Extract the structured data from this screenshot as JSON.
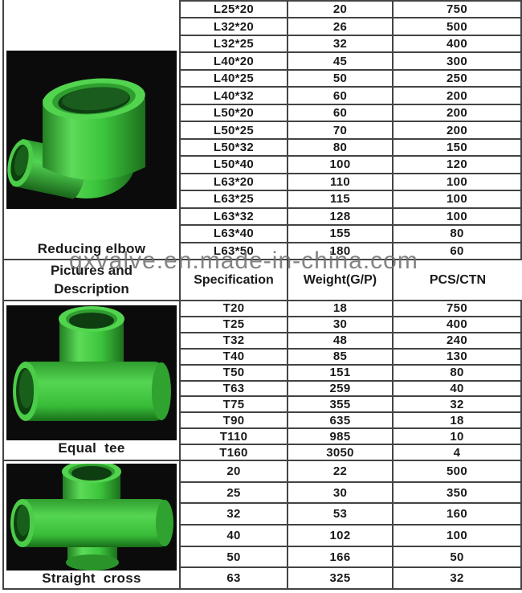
{
  "watermark": "qxvalve.en.made-in-china.com",
  "header": {
    "pictures_line1": "Pictures and",
    "pictures_line2": "Description",
    "columns": [
      "Specification",
      "Weight(G/P)",
      "PCS/CTN"
    ]
  },
  "colors": {
    "fitting_green": "#3cc43c",
    "fitting_green_light": "#5cdb58",
    "fitting_green_dark": "#1c6f1c",
    "photo_background": "#0b0b0b",
    "table_border": "#434343",
    "watermark_gray": "#6f6f6f",
    "text": "#1a1a1a"
  },
  "sections": {
    "reducing_elbow": {
      "label": "Reducing elbow",
      "rows": [
        [
          "L25*20",
          "20",
          "750"
        ],
        [
          "L32*20",
          "26",
          "500"
        ],
        [
          "L32*25",
          "32",
          "400"
        ],
        [
          "L40*20",
          "45",
          "300"
        ],
        [
          "L40*25",
          "50",
          "250"
        ],
        [
          "L40*32",
          "60",
          "200"
        ],
        [
          "L50*20",
          "60",
          "200"
        ],
        [
          "L50*25",
          "70",
          "200"
        ],
        [
          "L50*32",
          "80",
          "150"
        ],
        [
          "L50*40",
          "100",
          "120"
        ],
        [
          "L63*20",
          "110",
          "100"
        ],
        [
          "L63*25",
          "115",
          "100"
        ],
        [
          "L63*32",
          "128",
          "100"
        ],
        [
          "L63*40",
          "155",
          "80"
        ],
        [
          "L63*50",
          "180",
          "60"
        ]
      ]
    },
    "equal_tee": {
      "label": "Equal  tee",
      "rows": [
        [
          "T20",
          "18",
          "750"
        ],
        [
          "T25",
          "30",
          "400"
        ],
        [
          "T32",
          "48",
          "240"
        ],
        [
          "T40",
          "85",
          "130"
        ],
        [
          "T50",
          "151",
          "80"
        ],
        [
          "T63",
          "259",
          "40"
        ],
        [
          "T75",
          "355",
          "32"
        ],
        [
          "T90",
          "635",
          "18"
        ],
        [
          "T110",
          "985",
          "10"
        ],
        [
          "T160",
          "3050",
          "4"
        ]
      ]
    },
    "straight_cross": {
      "label": "Straight  cross",
      "rows": [
        [
          "20",
          "22",
          "500"
        ],
        [
          "25",
          "30",
          "350"
        ],
        [
          "32",
          "53",
          "160"
        ],
        [
          "40",
          "102",
          "100"
        ],
        [
          "50",
          "166",
          "50"
        ],
        [
          "63",
          "325",
          "32"
        ]
      ]
    }
  }
}
